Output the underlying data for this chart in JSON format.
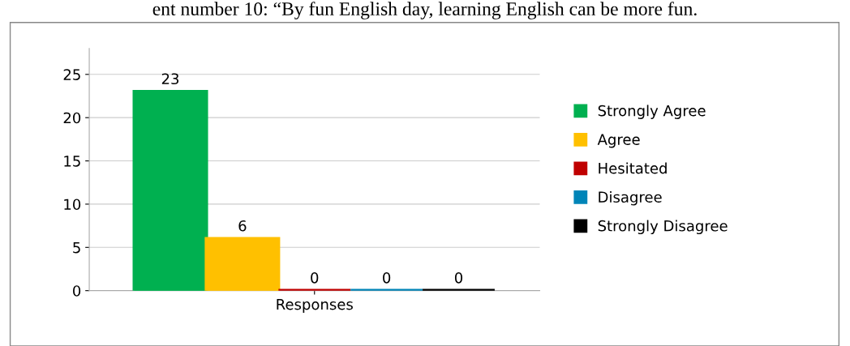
{
  "chart_data": {
    "type": "bar",
    "title": "ent number 10: “By fun English day, learning English can be more fun.",
    "categories": [
      "Responses"
    ],
    "series": [
      {
        "name": "Strongly Agree",
        "color": "#00b050",
        "values": [
          23
        ]
      },
      {
        "name": "Agree",
        "color": "#ffc000",
        "values": [
          6
        ]
      },
      {
        "name": "Hesitated",
        "color": "#c00000",
        "values": [
          0
        ]
      },
      {
        "name": "Disagree",
        "color": "#0085b8",
        "values": [
          0
        ]
      },
      {
        "name": "Strongly Disagree",
        "color": "#000000",
        "values": [
          0
        ]
      }
    ],
    "ylim": [
      0,
      28
    ],
    "yticks": [
      0,
      5,
      10,
      15,
      20,
      25
    ],
    "grid": "y",
    "legend": "right",
    "data_labels": true
  }
}
